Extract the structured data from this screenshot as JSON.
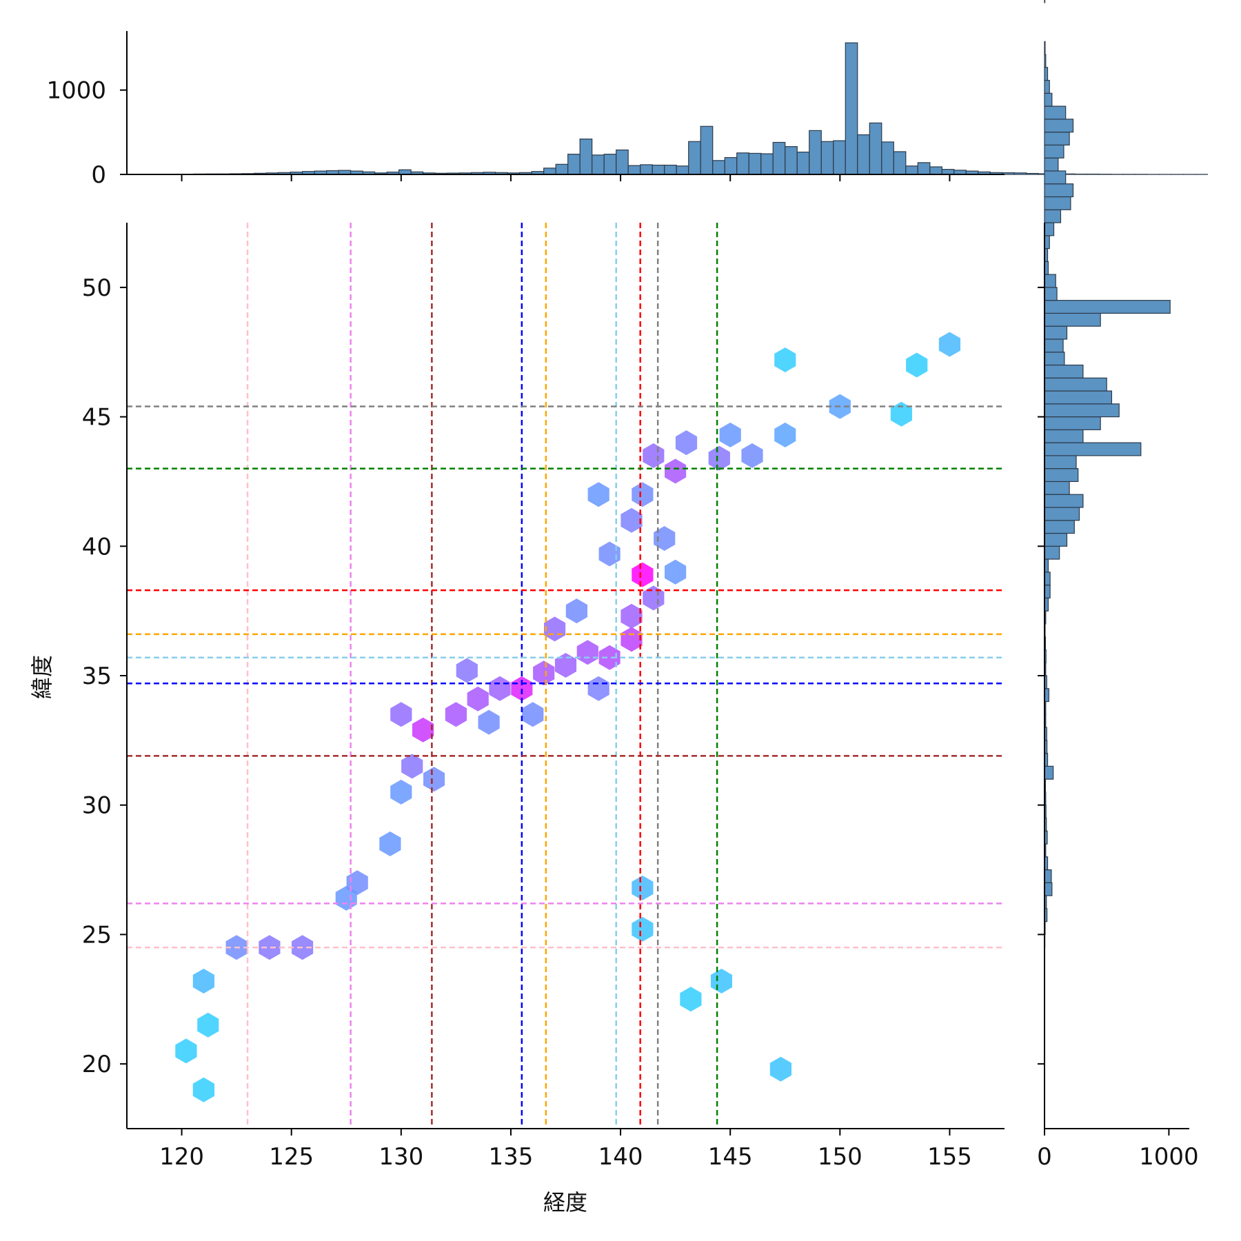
{
  "chart_data": {
    "type": "hexbin_jointplot",
    "xlabel": "経度",
    "ylabel": "緯度",
    "xlim": [
      117.5,
      157.5
    ],
    "ylim": [
      17.5,
      52.5
    ],
    "x_ticks": [
      120,
      125,
      130,
      135,
      140,
      145,
      150,
      155
    ],
    "y_ticks": [
      20,
      25,
      30,
      35,
      40,
      45,
      50
    ],
    "hex_colormap": "cool",
    "grid": false,
    "reference_lines": {
      "vertical": [
        {
          "x": 123.0,
          "color": "#ffc0cb"
        },
        {
          "x": 127.7,
          "color": "#ee82ee"
        },
        {
          "x": 131.4,
          "color": "#a52a2a"
        },
        {
          "x": 135.5,
          "color": "#0000ff"
        },
        {
          "x": 136.6,
          "color": "#ffa500"
        },
        {
          "x": 139.8,
          "color": "#87ceeb"
        },
        {
          "x": 140.9,
          "color": "#ff0000"
        },
        {
          "x": 141.7,
          "color": "#808080"
        },
        {
          "x": 144.4,
          "color": "#008000"
        }
      ],
      "horizontal": [
        {
          "y": 45.4,
          "color": "#808080"
        },
        {
          "y": 43.0,
          "color": "#008000"
        },
        {
          "y": 38.3,
          "color": "#ff0000"
        },
        {
          "y": 36.6,
          "color": "#ffa500"
        },
        {
          "y": 35.7,
          "color": "#87ceeb"
        },
        {
          "y": 34.7,
          "color": "#0000ff"
        },
        {
          "y": 31.9,
          "color": "#a52a2a"
        },
        {
          "y": 26.2,
          "color": "#ee82ee"
        },
        {
          "y": 24.5,
          "color": "#ffc0cb"
        }
      ]
    },
    "hexbins": [
      [
        131.0,
        32.9,
        0.75
      ],
      [
        132.5,
        33.5,
        0.6
      ],
      [
        133.5,
        34.1,
        0.6
      ],
      [
        134.5,
        34.5,
        0.55
      ],
      [
        135.5,
        34.5,
        0.85
      ],
      [
        136.5,
        35.1,
        0.6
      ],
      [
        137.5,
        35.4,
        0.55
      ],
      [
        138.5,
        35.9,
        0.6
      ],
      [
        139.5,
        35.7,
        0.65
      ],
      [
        140.5,
        36.4,
        0.7
      ],
      [
        141.0,
        38.9,
        1.0
      ],
      [
        140.5,
        37.3,
        0.55
      ],
      [
        141.5,
        38.0,
        0.5
      ],
      [
        142.5,
        42.9,
        0.6
      ],
      [
        141.5,
        43.5,
        0.5
      ],
      [
        140.5,
        41.0,
        0.4
      ],
      [
        142.0,
        40.3,
        0.35
      ],
      [
        139.5,
        39.7,
        0.35
      ],
      [
        143.0,
        44.0,
        0.4
      ],
      [
        144.5,
        43.4,
        0.45
      ],
      [
        146.0,
        43.5,
        0.35
      ],
      [
        130.0,
        33.5,
        0.5
      ],
      [
        130.5,
        31.5,
        0.45
      ],
      [
        131.5,
        31.0,
        0.35
      ],
      [
        130.0,
        30.5,
        0.3
      ],
      [
        129.5,
        28.5,
        0.3
      ],
      [
        128.0,
        27.0,
        0.35
      ],
      [
        127.5,
        26.4,
        0.3
      ],
      [
        124.0,
        24.5,
        0.45
      ],
      [
        125.5,
        24.5,
        0.45
      ],
      [
        122.5,
        24.5,
        0.35
      ],
      [
        137.0,
        36.8,
        0.5
      ],
      [
        138.0,
        37.5,
        0.35
      ],
      [
        133.0,
        35.2,
        0.45
      ],
      [
        134.0,
        33.2,
        0.35
      ],
      [
        136.0,
        33.5,
        0.35
      ],
      [
        139.0,
        34.5,
        0.4
      ],
      [
        142.5,
        39.0,
        0.3
      ],
      [
        141.0,
        42.0,
        0.35
      ],
      [
        139.0,
        42.0,
        0.3
      ],
      [
        145.0,
        44.3,
        0.3
      ],
      [
        147.5,
        44.3,
        0.25
      ],
      [
        150.0,
        45.4,
        0.25
      ],
      [
        121.0,
        23.2,
        0.15
      ],
      [
        121.2,
        21.5,
        0.05
      ],
      [
        121.0,
        19.0,
        0.05
      ],
      [
        120.2,
        20.5,
        0.05
      ],
      [
        147.3,
        19.8,
        0.1
      ],
      [
        143.2,
        22.5,
        0.05
      ],
      [
        144.6,
        23.2,
        0.1
      ],
      [
        155.0,
        47.8,
        0.15
      ],
      [
        153.5,
        47.0,
        0.05
      ],
      [
        147.5,
        47.2,
        0.05
      ],
      [
        152.8,
        45.1,
        0.05
      ],
      [
        141.0,
        26.8,
        0.15
      ],
      [
        141.0,
        25.2,
        0.1
      ]
    ],
    "x_marginal": {
      "type": "histogram",
      "ylabel_ticks": [
        0,
        1000
      ],
      "bin_start": 120.0,
      "bin_width": 0.55,
      "counts": [
        3,
        5,
        6,
        6,
        8,
        10,
        14,
        18,
        22,
        28,
        35,
        40,
        45,
        48,
        40,
        30,
        18,
        28,
        55,
        30,
        18,
        14,
        16,
        18,
        22,
        26,
        22,
        18,
        22,
        35,
        75,
        120,
        240,
        420,
        230,
        240,
        290,
        105,
        115,
        110,
        110,
        100,
        390,
        570,
        165,
        200,
        255,
        250,
        245,
        380,
        330,
        265,
        520,
        390,
        400,
        1560,
        470,
        610,
        385,
        270,
        100,
        140,
        90,
        60,
        50,
        40,
        30,
        22,
        20,
        18,
        12,
        8,
        8,
        6,
        4,
        4,
        3,
        2,
        2,
        2,
        1,
        1,
        1,
        1,
        1
      ]
    },
    "y_marginal": {
      "type": "histogram",
      "xlabel_ticks": [
        0,
        1000
      ],
      "bin_start": 18.0,
      "bin_width": 0.5,
      "counts": [
        0,
        0,
        0,
        0,
        0,
        0,
        0,
        0,
        0,
        0,
        0,
        0,
        2,
        3,
        5,
        20,
        15,
        60,
        55,
        25,
        10,
        22,
        15,
        12,
        10,
        8,
        70,
        25,
        20,
        18,
        10,
        10,
        35,
        18,
        10,
        12,
        8,
        5,
        10,
        30,
        45,
        45,
        30,
        120,
        180,
        240,
        280,
        310,
        200,
        270,
        255,
        775,
        310,
        450,
        600,
        540,
        500,
        310,
        160,
        150,
        180,
        450,
        1010,
        100,
        90,
        30,
        25,
        40,
        75,
        130,
        210,
        230,
        170,
        110,
        155,
        200,
        230,
        170,
        60,
        40,
        25,
        10,
        5,
        0,
        0,
        0,
        3,
        2,
        0,
        0,
        0,
        0,
        0,
        0,
        0,
        0,
        0,
        0
      ]
    }
  }
}
